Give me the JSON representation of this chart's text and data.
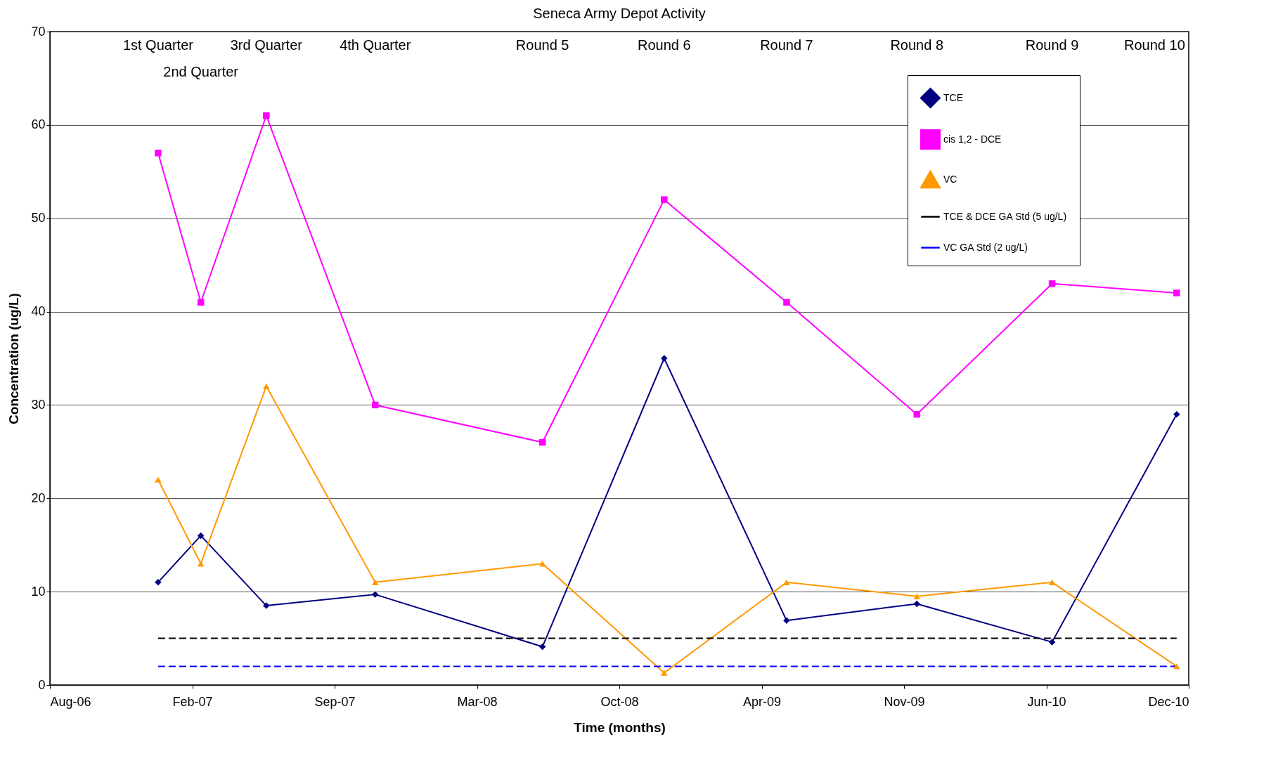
{
  "chart_data": {
    "type": "line",
    "title": "Seneca Army Depot Activity",
    "xlabel": "Time (months)",
    "ylabel": "Concentration (ug/L)",
    "x": [
      "2006-12-31",
      "2007-03-01",
      "2007-06-01",
      "2007-11-01",
      "2008-06-23",
      "2008-12-11",
      "2009-06-01",
      "2009-12-01",
      "2010-06-09",
      "2010-12-01"
    ],
    "series": [
      {
        "name": "TCE",
        "color": "#000080",
        "marker": "diamond",
        "line_style": "solid",
        "values": [
          11,
          16,
          8.5,
          9.7,
          4.1,
          35,
          6.9,
          8.7,
          4.6,
          29
        ]
      },
      {
        "name": "cis 1,2 - DCE",
        "color": "#ff00ff",
        "marker": "square",
        "line_style": "solid",
        "values": [
          57,
          41,
          61,
          30,
          26,
          52,
          41,
          29,
          43,
          42
        ]
      },
      {
        "name": "VC",
        "color": "#ff9900",
        "marker": "triangle",
        "line_style": "solid",
        "values": [
          22,
          13,
          32,
          11,
          13,
          1.3,
          11,
          9.5,
          11,
          2
        ]
      },
      {
        "name": "TCE & DCE GA Std (5 ug/L)",
        "color": "#000000",
        "marker": "none",
        "line_style": "dashed",
        "x": [
          "2006-12-31",
          "2010-12-01"
        ],
        "values": [
          5,
          5
        ]
      },
      {
        "name": "VC GA Std (2 ug/L)",
        "color": "#0000ff",
        "marker": "none",
        "line_style": "dashed",
        "x": [
          "2006-12-31",
          "2010-12-01"
        ],
        "values": [
          2,
          2
        ]
      }
    ],
    "xlim": [
      "2006-08-01",
      "2010-12-18"
    ],
    "xticks": [
      {
        "value": "2006-08-01",
        "label": "Aug-06"
      },
      {
        "value": "2007-02-17",
        "label": "Feb-07"
      },
      {
        "value": "2007-09-05",
        "label": "Sep-07"
      },
      {
        "value": "2008-03-23",
        "label": "Mar-08"
      },
      {
        "value": "2008-10-09",
        "label": "Oct-08"
      },
      {
        "value": "2009-04-27",
        "label": "Apr-09"
      },
      {
        "value": "2009-11-13",
        "label": "Nov-09"
      },
      {
        "value": "2010-06-01",
        "label": "Jun-10"
      },
      {
        "value": "2010-12-18",
        "label": "Dec-10"
      }
    ],
    "ylim": [
      0,
      70
    ],
    "yticks": [
      0,
      10,
      20,
      30,
      40,
      50,
      60,
      70
    ],
    "grid": "y",
    "legend": "top right",
    "annotations": [
      "1st Quarter",
      "2nd Quarter",
      "3rd Quarter",
      "4th Quarter",
      "Round 5",
      "Round 6",
      "Round 7",
      "Round 8",
      "Round 9",
      "Round 10"
    ]
  }
}
